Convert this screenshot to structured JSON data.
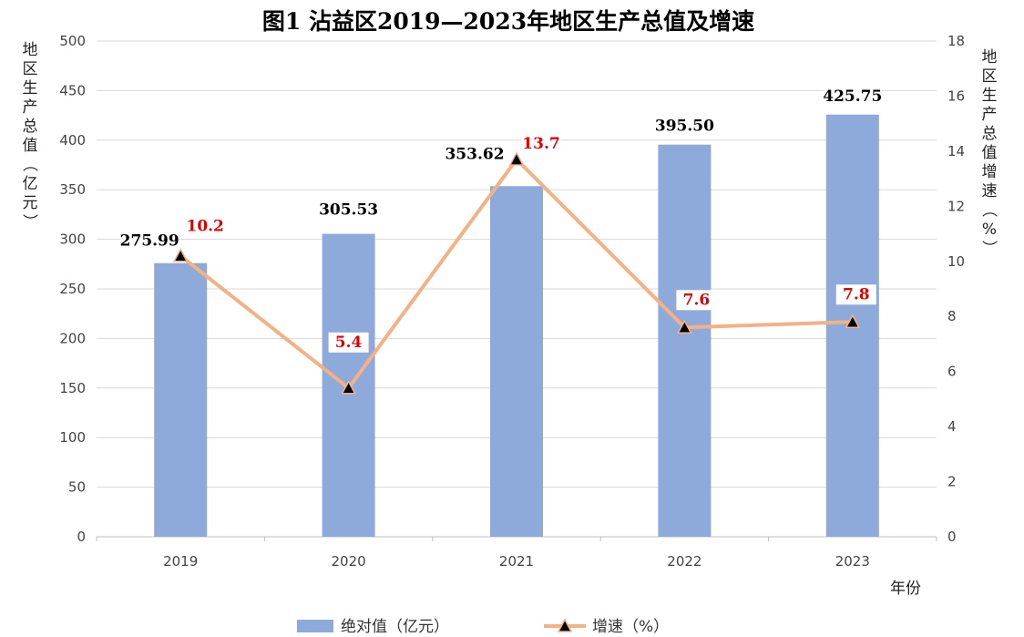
{
  "chart_data": {
    "type": "bar+line",
    "title": "图1  沾益区2019—2023年地区生产总值及增速",
    "categories": [
      "2019",
      "2020",
      "2021",
      "2022",
      "2023"
    ],
    "xlabel": "年份",
    "y_left_label": "地区生产总值（亿元）",
    "y_right_label": "地区生产总值增速（%）",
    "y_left_lim": [
      0,
      500
    ],
    "y_left_ticks": [
      "0",
      "50",
      "100",
      "150",
      "200",
      "250",
      "300",
      "350",
      "400",
      "450",
      "500"
    ],
    "y_right_lim": [
      0,
      18
    ],
    "y_right_ticks": [
      "0",
      "2",
      "4",
      "6",
      "8",
      "10",
      "12",
      "14",
      "16",
      "18"
    ],
    "grid": true,
    "legend_position": "bottom",
    "series": [
      {
        "name": "绝对值（亿元）",
        "type": "bar",
        "axis": "left",
        "color": "#8eaadb",
        "values": [
          275.99,
          305.53,
          353.62,
          395.5,
          425.75
        ],
        "labels": [
          "275.99",
          "305.53",
          "353.62",
          "395.50",
          "425.75"
        ]
      },
      {
        "name": "增速（%）",
        "type": "line",
        "axis": "right",
        "color": "#f4b183",
        "marker": "triangle",
        "values": [
          10.2,
          5.4,
          13.7,
          7.6,
          7.8
        ],
        "labels": [
          "10.2",
          "5.4",
          "13.7",
          "7.6",
          "7.8"
        ]
      }
    ]
  }
}
